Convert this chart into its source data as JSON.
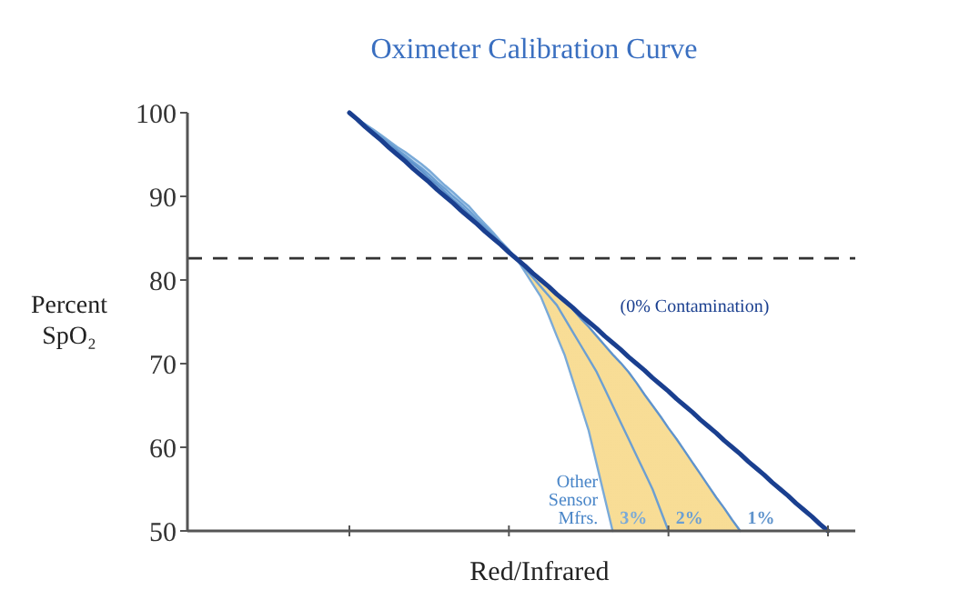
{
  "chart_data": {
    "type": "line",
    "title": "Oximeter Calibration Curve",
    "xlabel": "Red/Infrared",
    "ylabel": "Percent SpO₂",
    "categories": [
      null,
      null,
      null,
      null,
      null,
      null,
      null,
      null,
      null,
      null,
      null,
      null,
      null,
      null,
      null,
      null,
      null,
      null,
      null,
      null,
      null,
      null,
      null,
      null,
      null,
      null,
      null,
      null,
      null,
      null,
      null,
      null,
      null,
      null,
      null,
      null,
      null,
      null,
      null,
      null,
      null,
      null,
      null,
      null,
      null,
      null,
      null,
      null,
      null,
      null,
      null,
      null,
      null,
      null,
      null,
      null,
      null,
      null,
      null,
      null,
      null
    ],
    "ylim": [
      50,
      100
    ],
    "yticks": [
      50,
      60,
      70,
      80,
      90,
      100
    ],
    "series": [
      {
        "name": "3%",
        "color": "#7aaad8",
        "values": [
          100,
          99.3,
          98.6,
          98.0,
          97.3,
          96.6,
          95.9,
          95.3,
          94.6,
          93.9,
          93.1,
          92.2,
          91.3,
          90.5,
          89.6,
          88.8,
          87.7,
          86.7,
          85.7,
          84.6,
          83.6,
          82.5,
          81.0,
          79.5,
          78.0,
          75.7,
          73.3,
          71.0,
          68.0,
          65.0,
          62.0,
          58.0,
          54.0,
          50.0,
          null,
          null,
          null,
          null,
          null,
          null,
          null,
          null,
          null,
          null,
          null,
          null,
          null,
          null,
          null,
          null,
          null,
          null,
          null,
          null,
          null,
          null,
          null,
          null,
          null,
          null,
          null
        ]
      },
      {
        "name": "2%",
        "color": "#6c9fd2",
        "lower": [
          100,
          99.2,
          98.3,
          97.5,
          96.7,
          95.8,
          95,
          94.2,
          93.3,
          92.5,
          91.7,
          90.8,
          90,
          89.2,
          88.3,
          87.5,
          86.7,
          85.8,
          85,
          84.2,
          83.3,
          82.5,
          81.0,
          79.5,
          78.0,
          75.7,
          73.3,
          71.0,
          68.0,
          65.0,
          62.0,
          58.0,
          54.0,
          50.0,
          50,
          50,
          50,
          50,
          50,
          50,
          50,
          50,
          50,
          50,
          50,
          50,
          50,
          50,
          50,
          50,
          null,
          null,
          null,
          null,
          null,
          null,
          null,
          null,
          null,
          null,
          null
        ],
        "upper": [
          100,
          99.3,
          98.6,
          98.0,
          97.3,
          96.6,
          95.9,
          95.3,
          94.6,
          93.9,
          93.1,
          92.2,
          91.3,
          90.5,
          89.6,
          88.8,
          87.7,
          86.7,
          85.7,
          84.6,
          83.6,
          82.5,
          81.6,
          80.8,
          79.9,
          79.1,
          78.2,
          77.4,
          76.5,
          75.4,
          74.4,
          73.3,
          72.2,
          71.1,
          70.1,
          69.0,
          67.7,
          66.3,
          65.0,
          63.7,
          62.3,
          61.0,
          59.6,
          58.2,
          56.8,
          55.4,
          54.0,
          52.7,
          51.3,
          50.0,
          null,
          null,
          null,
          null,
          null,
          null,
          null,
          null,
          null,
          null,
          null
        ],
        "values": [
          100,
          99.3,
          98.6,
          97.8,
          97.1,
          96.4,
          95.6,
          94.9,
          94.1,
          93.4,
          92.6,
          91.7,
          90.9,
          90.0,
          89.2,
          88.3,
          87.3,
          86.4,
          85.4,
          84.4,
          83.5,
          82.5,
          81.4,
          80.3,
          79.2,
          78.1,
          77.0,
          75.4,
          73.8,
          72.2,
          70.6,
          69.0,
          67.0,
          65.0,
          63.0,
          61.0,
          59.0,
          57.0,
          55.0,
          52.5,
          50.0,
          null,
          null,
          null,
          null,
          null,
          null,
          null,
          null,
          null,
          null,
          null,
          null,
          null,
          null,
          null,
          null,
          null,
          null,
          null,
          null
        ]
      },
      {
        "name": "1%",
        "color": "#5f93cc",
        "values": [
          100,
          99.2,
          98.5,
          97.7,
          96.9,
          96.1,
          95.4,
          94.6,
          93.9,
          93.1,
          92.2,
          91.4,
          90.5,
          89.6,
          88.8,
          87.9,
          87.0,
          86.1,
          85.2,
          84.3,
          83.4,
          82.5,
          81.6,
          80.8,
          79.9,
          79.1,
          78.2,
          77.4,
          76.5,
          75.4,
          74.4,
          73.3,
          72.2,
          71.1,
          70.1,
          69.0,
          67.7,
          66.3,
          65.0,
          63.7,
          62.3,
          61.0,
          59.6,
          58.2,
          56.8,
          55.4,
          54.0,
          52.7,
          51.3,
          50.0,
          null,
          null,
          null,
          null,
          null,
          null,
          null,
          null,
          null,
          null,
          null
        ]
      },
      {
        "name": "(0% Contamination)",
        "color": "#1a3f8f",
        "values": [
          100,
          99.2,
          98.3,
          97.5,
          96.7,
          95.8,
          95,
          94.2,
          93.3,
          92.5,
          91.7,
          90.8,
          90,
          89.2,
          88.3,
          87.5,
          86.7,
          85.8,
          85,
          84.2,
          83.3,
          82.5,
          81.7,
          80.8,
          80,
          79.2,
          78.3,
          77.5,
          76.7,
          75.8,
          75,
          74.2,
          73.3,
          72.5,
          71.7,
          70.8,
          70,
          69.2,
          68.3,
          67.5,
          66.7,
          65.8,
          65,
          64.2,
          63.3,
          62.5,
          61.7,
          60.8,
          60,
          59.2,
          58.3,
          57.5,
          56.7,
          55.8,
          55,
          54.2,
          53.3,
          52.5,
          51.7,
          50.8,
          50
        ]
      }
    ],
    "ref_lines": [
      {
        "axis": "y",
        "value": 82.6,
        "color": "#333333",
        "line_style": "dashed"
      }
    ],
    "annotations": [
      "Other Sensor Mfrs."
    ],
    "grid": false,
    "marker": "none",
    "line_style": "solid"
  }
}
